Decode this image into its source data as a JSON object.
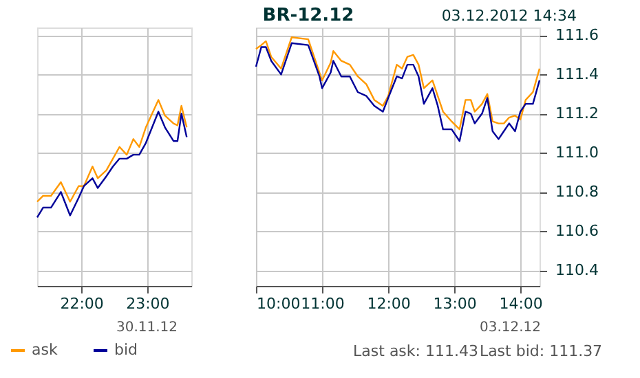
{
  "chart_data": [
    {
      "type": "line",
      "x": [
        21.33,
        21.42,
        21.54,
        21.69,
        21.83,
        21.96,
        22.04,
        22.17,
        22.25,
        22.38,
        22.48,
        22.58,
        22.69,
        22.79,
        22.88,
        22.98,
        23.17,
        23.27,
        23.4,
        23.46,
        23.52,
        23.6
      ],
      "series": [
        {
          "name": "ask",
          "color": "#ff9900",
          "values": [
            110.75,
            110.78,
            110.78,
            110.85,
            110.75,
            110.83,
            110.83,
            110.93,
            110.87,
            110.91,
            110.97,
            111.03,
            110.99,
            111.07,
            111.03,
            111.13,
            111.27,
            111.19,
            111.15,
            111.14,
            111.24,
            111.13
          ]
        },
        {
          "name": "bid",
          "color": "#000099",
          "values": [
            110.67,
            110.72,
            110.72,
            110.8,
            110.68,
            110.77,
            110.83,
            110.87,
            110.82,
            110.88,
            110.93,
            110.97,
            110.97,
            110.99,
            110.99,
            111.05,
            111.21,
            111.13,
            111.06,
            111.06,
            111.2,
            111.08
          ]
        }
      ],
      "xlim": [
        21.33,
        23.67
      ],
      "xticks": [
        {
          "value": 22,
          "label": "22:00"
        },
        {
          "value": 23,
          "label": "23:00"
        }
      ],
      "ylim": [
        110.32,
        111.64
      ],
      "yticks": [
        110.4,
        110.6,
        110.8,
        111,
        111.2,
        111.4,
        111.6
      ],
      "tick_labels": "x",
      "grid": true,
      "legend": "bottom left",
      "line_style": "solid",
      "annotations": [
        "30.11.12"
      ]
    },
    {
      "type": "line",
      "title": "BR-12.12",
      "x": [
        10.0,
        10.08,
        10.15,
        10.23,
        10.38,
        10.54,
        10.79,
        10.96,
        11.0,
        11.13,
        11.17,
        11.29,
        11.42,
        11.54,
        11.67,
        11.79,
        11.92,
        12.0,
        12.13,
        12.21,
        12.29,
        12.38,
        12.46,
        12.54,
        12.67,
        12.75,
        12.83,
        12.96,
        13.08,
        13.17,
        13.25,
        13.31,
        13.42,
        13.5,
        13.58,
        13.67,
        13.75,
        13.83,
        13.92,
        14.0,
        14.08,
        14.19,
        14.29
      ],
      "series": [
        {
          "color": "#ff9900",
          "values": [
            111.53,
            111.55,
            111.57,
            111.49,
            111.43,
            111.59,
            111.58,
            111.41,
            111.37,
            111.46,
            111.52,
            111.47,
            111.45,
            111.39,
            111.35,
            111.27,
            111.24,
            111.29,
            111.45,
            111.43,
            111.49,
            111.5,
            111.45,
            111.33,
            111.37,
            111.29,
            111.21,
            111.16,
            111.12,
            111.27,
            111.27,
            111.21,
            111.25,
            111.3,
            111.16,
            111.15,
            111.15,
            111.18,
            111.19,
            111.17,
            111.27,
            111.31,
            111.43
          ]
        },
        {
          "color": "#000099",
          "values": [
            111.44,
            111.54,
            111.54,
            111.47,
            111.4,
            111.56,
            111.55,
            111.39,
            111.33,
            111.41,
            111.47,
            111.39,
            111.39,
            111.31,
            111.29,
            111.24,
            111.21,
            111.28,
            111.39,
            111.38,
            111.45,
            111.45,
            111.39,
            111.25,
            111.33,
            111.24,
            111.12,
            111.12,
            111.06,
            111.21,
            111.2,
            111.15,
            111.2,
            111.28,
            111.11,
            111.07,
            111.11,
            111.15,
            111.11,
            111.21,
            111.25,
            111.25,
            111.37
          ]
        }
      ],
      "xlim": [
        10.0,
        14.29
      ],
      "xticks": [
        {
          "value": 10,
          "label": "10:00"
        },
        {
          "value": 11,
          "label": "11:00"
        },
        {
          "value": 12,
          "label": "12:00"
        },
        {
          "value": 13,
          "label": "13:00"
        },
        {
          "value": 14,
          "label": "14:00"
        }
      ],
      "ylim": [
        110.32,
        111.64
      ],
      "yticks": [
        110.4,
        110.6,
        110.8,
        {
          "value": 111,
          "label": "111.0"
        },
        111.2,
        111.4,
        111.6
      ],
      "grid": true,
      "line_style": "solid",
      "annotations": [
        "03.12.2012 14:34",
        "03.12.12",
        "Last ask: 111.43",
        "Last bid: 111.37"
      ]
    }
  ]
}
